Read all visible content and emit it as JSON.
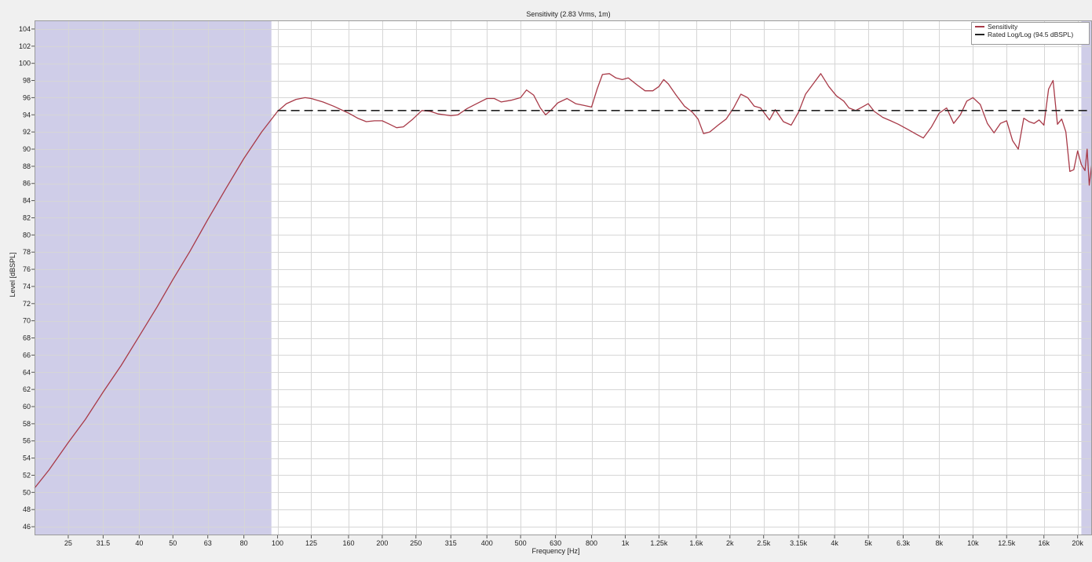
{
  "chart_data": {
    "type": "line",
    "title": "Sensitivity (2.83 Vrms, 1m)",
    "xlabel": "Frequency [Hz]",
    "ylabel": "Level [dBSPL]",
    "xscale": "log",
    "xlim": [
      20,
      22000
    ],
    "ylim": [
      45,
      105
    ],
    "x_ticks": [
      {
        "value": 25,
        "label": "25"
      },
      {
        "value": 31.5,
        "label": "31.5"
      },
      {
        "value": 40,
        "label": "40"
      },
      {
        "value": 50,
        "label": "50"
      },
      {
        "value": 63,
        "label": "63"
      },
      {
        "value": 80,
        "label": "80"
      },
      {
        "value": 100,
        "label": "100"
      },
      {
        "value": 125,
        "label": "125"
      },
      {
        "value": 160,
        "label": "160"
      },
      {
        "value": 200,
        "label": "200"
      },
      {
        "value": 250,
        "label": "250"
      },
      {
        "value": 315,
        "label": "315"
      },
      {
        "value": 400,
        "label": "400"
      },
      {
        "value": 500,
        "label": "500"
      },
      {
        "value": 630,
        "label": "630"
      },
      {
        "value": 800,
        "label": "800"
      },
      {
        "value": 1000,
        "label": "1k"
      },
      {
        "value": 1250,
        "label": "1.25k"
      },
      {
        "value": 1600,
        "label": "1.6k"
      },
      {
        "value": 2000,
        "label": "2k"
      },
      {
        "value": 2500,
        "label": "2.5k"
      },
      {
        "value": 3150,
        "label": "3.15k"
      },
      {
        "value": 4000,
        "label": "4k"
      },
      {
        "value": 5000,
        "label": "5k"
      },
      {
        "value": 6300,
        "label": "6.3k"
      },
      {
        "value": 8000,
        "label": "8k"
      },
      {
        "value": 10000,
        "label": "10k"
      },
      {
        "value": 12500,
        "label": "12.5k"
      },
      {
        "value": 16000,
        "label": "16k"
      },
      {
        "value": 20000,
        "label": "20k"
      }
    ],
    "y_ticks": [
      {
        "value": 46,
        "label": "46"
      },
      {
        "value": 48,
        "label": "48"
      },
      {
        "value": 50,
        "label": "50"
      },
      {
        "value": 52,
        "label": "52"
      },
      {
        "value": 54,
        "label": "54"
      },
      {
        "value": 56,
        "label": "56"
      },
      {
        "value": 58,
        "label": "58"
      },
      {
        "value": 60,
        "label": "60"
      },
      {
        "value": 62,
        "label": "62"
      },
      {
        "value": 64,
        "label": "64"
      },
      {
        "value": 66,
        "label": "66"
      },
      {
        "value": 68,
        "label": "68"
      },
      {
        "value": 70,
        "label": "70"
      },
      {
        "value": 72,
        "label": "72"
      },
      {
        "value": 74,
        "label": "74"
      },
      {
        "value": 76,
        "label": "76"
      },
      {
        "value": 78,
        "label": "78"
      },
      {
        "value": 80,
        "label": "80"
      },
      {
        "value": 82,
        "label": "82"
      },
      {
        "value": 84,
        "label": "84"
      },
      {
        "value": 86,
        "label": "86"
      },
      {
        "value": 88,
        "label": "88"
      },
      {
        "value": 90,
        "label": "90"
      },
      {
        "value": 92,
        "label": "92"
      },
      {
        "value": 94,
        "label": "94"
      },
      {
        "value": 96,
        "label": "96"
      },
      {
        "value": 98,
        "label": "98"
      },
      {
        "value": 100,
        "label": "100"
      },
      {
        "value": 102,
        "label": "102"
      },
      {
        "value": 104,
        "label": "104"
      }
    ],
    "grid": true,
    "shaded_ranges": [
      {
        "from": 20,
        "to": 96,
        "color": "#cfcde8"
      },
      {
        "from": 20500,
        "to": 22000,
        "color": "#cfcde8"
      }
    ],
    "legend_position": "top-right",
    "series": [
      {
        "name": "Sensitivity",
        "color": "#a83a48",
        "style": "solid",
        "points": [
          [
            20,
            50.5
          ],
          [
            22,
            52.6
          ],
          [
            25,
            55.8
          ],
          [
            28,
            58.5
          ],
          [
            31.5,
            61.7
          ],
          [
            35.5,
            64.8
          ],
          [
            40,
            68.2
          ],
          [
            45,
            71.6
          ],
          [
            50,
            74.8
          ],
          [
            56,
            78.1
          ],
          [
            63,
            81.8
          ],
          [
            71,
            85.4
          ],
          [
            80,
            88.9
          ],
          [
            90,
            92.0
          ],
          [
            100,
            94.4
          ],
          [
            106,
            95.3
          ],
          [
            113,
            95.8
          ],
          [
            120,
            96.0
          ],
          [
            125,
            95.9
          ],
          [
            135,
            95.5
          ],
          [
            145,
            95.0
          ],
          [
            160,
            94.2
          ],
          [
            170,
            93.6
          ],
          [
            180,
            93.2
          ],
          [
            190,
            93.3
          ],
          [
            200,
            93.3
          ],
          [
            210,
            92.9
          ],
          [
            220,
            92.5
          ],
          [
            230,
            92.6
          ],
          [
            245,
            93.5
          ],
          [
            260,
            94.5
          ],
          [
            275,
            94.4
          ],
          [
            290,
            94.1
          ],
          [
            315,
            93.9
          ],
          [
            330,
            94.0
          ],
          [
            350,
            94.7
          ],
          [
            370,
            95.2
          ],
          [
            400,
            95.9
          ],
          [
            420,
            95.9
          ],
          [
            440,
            95.5
          ],
          [
            470,
            95.7
          ],
          [
            500,
            96.0
          ],
          [
            520,
            96.9
          ],
          [
            545,
            96.3
          ],
          [
            570,
            94.8
          ],
          [
            590,
            94.0
          ],
          [
            610,
            94.5
          ],
          [
            640,
            95.4
          ],
          [
            680,
            95.9
          ],
          [
            720,
            95.3
          ],
          [
            760,
            95.1
          ],
          [
            800,
            94.9
          ],
          [
            830,
            97.0
          ],
          [
            860,
            98.7
          ],
          [
            900,
            98.8
          ],
          [
            940,
            98.3
          ],
          [
            980,
            98.1
          ],
          [
            1020,
            98.3
          ],
          [
            1080,
            97.5
          ],
          [
            1140,
            96.8
          ],
          [
            1200,
            96.8
          ],
          [
            1250,
            97.3
          ],
          [
            1290,
            98.1
          ],
          [
            1330,
            97.6
          ],
          [
            1400,
            96.3
          ],
          [
            1480,
            95.0
          ],
          [
            1560,
            94.3
          ],
          [
            1620,
            93.5
          ],
          [
            1680,
            91.8
          ],
          [
            1750,
            92.0
          ],
          [
            1850,
            92.8
          ],
          [
            1950,
            93.5
          ],
          [
            2050,
            94.8
          ],
          [
            2150,
            96.4
          ],
          [
            2250,
            96.0
          ],
          [
            2350,
            95.0
          ],
          [
            2450,
            94.8
          ],
          [
            2600,
            93.4
          ],
          [
            2700,
            94.6
          ],
          [
            2850,
            93.2
          ],
          [
            3000,
            92.8
          ],
          [
            3150,
            94.3
          ],
          [
            3300,
            96.4
          ],
          [
            3500,
            97.8
          ],
          [
            3650,
            98.8
          ],
          [
            3850,
            97.3
          ],
          [
            4050,
            96.2
          ],
          [
            4250,
            95.6
          ],
          [
            4400,
            94.8
          ],
          [
            4600,
            94.5
          ],
          [
            4800,
            94.9
          ],
          [
            5000,
            95.3
          ],
          [
            5200,
            94.4
          ],
          [
            5500,
            93.7
          ],
          [
            5800,
            93.3
          ],
          [
            6100,
            92.9
          ],
          [
            6500,
            92.3
          ],
          [
            6900,
            91.7
          ],
          [
            7200,
            91.3
          ],
          [
            7600,
            92.6
          ],
          [
            8000,
            94.2
          ],
          [
            8400,
            94.8
          ],
          [
            8800,
            93.0
          ],
          [
            9200,
            94.0
          ],
          [
            9600,
            95.6
          ],
          [
            10000,
            96.0
          ],
          [
            10500,
            95.2
          ],
          [
            11000,
            93.0
          ],
          [
            11500,
            91.9
          ],
          [
            12000,
            93.0
          ],
          [
            12500,
            93.3
          ],
          [
            13000,
            91.0
          ],
          [
            13500,
            90.0
          ],
          [
            14000,
            93.6
          ],
          [
            14500,
            93.2
          ],
          [
            15000,
            93.0
          ],
          [
            15500,
            93.4
          ],
          [
            16000,
            92.8
          ],
          [
            16500,
            97.0
          ],
          [
            17000,
            98.0
          ],
          [
            17500,
            92.9
          ],
          [
            18000,
            93.5
          ],
          [
            18500,
            92.0
          ],
          [
            19000,
            87.4
          ],
          [
            19500,
            87.6
          ],
          [
            20000,
            89.8
          ],
          [
            20500,
            88.2
          ],
          [
            21000,
            87.5
          ],
          [
            21300,
            90.0
          ],
          [
            21600,
            85.8
          ],
          [
            22000,
            88.4
          ]
        ]
      },
      {
        "name": "Rated Log/Log (94.5 dBSPL)",
        "color": "#222222",
        "style": "dashed",
        "points": [
          [
            100,
            94.5
          ],
          [
            22000,
            94.5
          ]
        ]
      }
    ]
  }
}
